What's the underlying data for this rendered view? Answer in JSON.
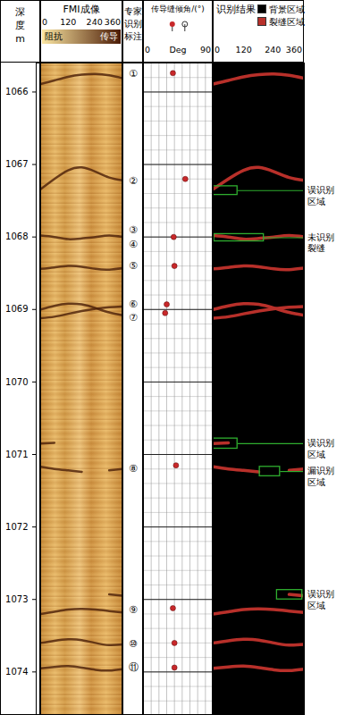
{
  "chart_data": {
    "type": "well_log",
    "ylim": [
      1065.6,
      1074.6
    ],
    "yticks": [
      1066,
      1067,
      1068,
      1069,
      1070,
      1071,
      1072,
      1073,
      1074
    ],
    "tracks": [
      {
        "type": "depth",
        "title": "深\n度\nm"
      },
      {
        "type": "image",
        "title": "FMI成像",
        "xlim": [
          0,
          360
        ],
        "xticks": [
          0,
          120,
          240,
          360
        ],
        "colorbar_labels": [
          "阻抗",
          "传导"
        ],
        "colors": [
          "#fbe6a2",
          "#4a1a05"
        ]
      },
      {
        "type": "labels",
        "title": "专家\n识别\n标注",
        "labels": [
          {
            "depth": 1065.75,
            "text": "①"
          },
          {
            "depth": 1067.23,
            "text": "②"
          },
          {
            "depth": 1067.9,
            "text": "③"
          },
          {
            "depth": 1068.1,
            "text": "④"
          },
          {
            "depth": 1068.4,
            "text": "⑤"
          },
          {
            "depth": 1068.93,
            "text": "⑥"
          },
          {
            "depth": 1069.11,
            "text": "⑦"
          },
          {
            "depth": 1071.2,
            "text": "⑧"
          },
          {
            "depth": 1073.15,
            "text": "⑨"
          },
          {
            "depth": 1073.61,
            "text": "⑩"
          },
          {
            "depth": 1073.94,
            "text": "⑪"
          }
        ]
      },
      {
        "type": "scatter",
        "title": "传导缝倾角/(°)",
        "xlim": [
          0,
          90
        ],
        "xticks": [
          0,
          90
        ],
        "xlabel": "Deg",
        "grid": true,
        "color": "#c8282a",
        "depth": [
          1065.74,
          1067.2,
          1068.0,
          1068.4,
          1068.93,
          1069.05,
          1071.15,
          1073.12,
          1073.6,
          1073.94
        ],
        "values": [
          38,
          54,
          39,
          40,
          30,
          28,
          42,
          38,
          40,
          40
        ]
      },
      {
        "type": "line",
        "title": "识别结果",
        "xlim": [
          0,
          360
        ],
        "xticks": [
          0,
          120,
          240,
          360
        ],
        "legend_items": [
          {
            "name": "背景区域",
            "color": "#000000"
          },
          {
            "name": "裂缝区域",
            "color": "#b8302a"
          }
        ],
        "azimuth": [
          0,
          60,
          120,
          180,
          240,
          300,
          360
        ],
        "curves": [
          [
            1065.89,
            1065.84,
            1065.79,
            1065.76,
            1065.75,
            1065.77,
            1065.81
          ],
          [
            1067.34,
            1067.2,
            1067.08,
            1067.04,
            1067.1,
            1067.18,
            1067.22
          ],
          [
            1067.98,
            1068.0,
            1068.03,
            1068.02,
            1068.0,
            1067.98,
            1068.0
          ],
          [
            1068.44,
            1068.42,
            1068.4,
            1068.41,
            1068.44,
            1068.45,
            1068.43
          ],
          [
            1069.0,
            1068.95,
            1068.92,
            1068.93,
            1068.98,
            1069.04,
            1069.08
          ],
          [
            1069.12,
            1069.1,
            1069.06,
            1069.02,
            1068.99,
            1068.97,
            1068.96
          ],
          [
            1070.85,
            1070.84,
            null,
            null,
            null,
            null,
            null
          ],
          [
            1071.17,
            1071.2,
            1071.22,
            1071.24,
            null,
            1071.22,
            1071.2
          ],
          [
            null,
            null,
            null,
            null,
            null,
            1072.93,
            1072.95
          ],
          [
            1073.2,
            1073.17,
            1073.14,
            1073.13,
            1073.14,
            1073.16,
            1073.18
          ],
          [
            1073.6,
            1073.57,
            1073.55,
            1073.56,
            1073.6,
            1073.63,
            1073.62
          ],
          [
            1073.95,
            1073.93,
            1073.92,
            1073.94,
            1073.97,
            1073.98,
            1073.96
          ]
        ],
        "annotations": [
          {
            "x1": 0,
            "x2": 96,
            "y1": 1067.3,
            "y2": 1067.42,
            "text": "误识别\n区域"
          },
          {
            "x1": 4,
            "x2": 200,
            "y1": 1067.96,
            "y2": 1068.06,
            "text": "未识别\n裂缝"
          },
          {
            "x1": 0,
            "x2": 96,
            "y1": 1070.78,
            "y2": 1070.92,
            "text": "误识别\n区域"
          },
          {
            "x1": 184,
            "x2": 264,
            "y1": 1071.17,
            "y2": 1071.3,
            "text": "漏识别\n区域"
          },
          {
            "x1": 252,
            "x2": 352,
            "y1": 1072.87,
            "y2": 1073.0,
            "text": "误识别\n区域"
          }
        ]
      }
    ]
  }
}
